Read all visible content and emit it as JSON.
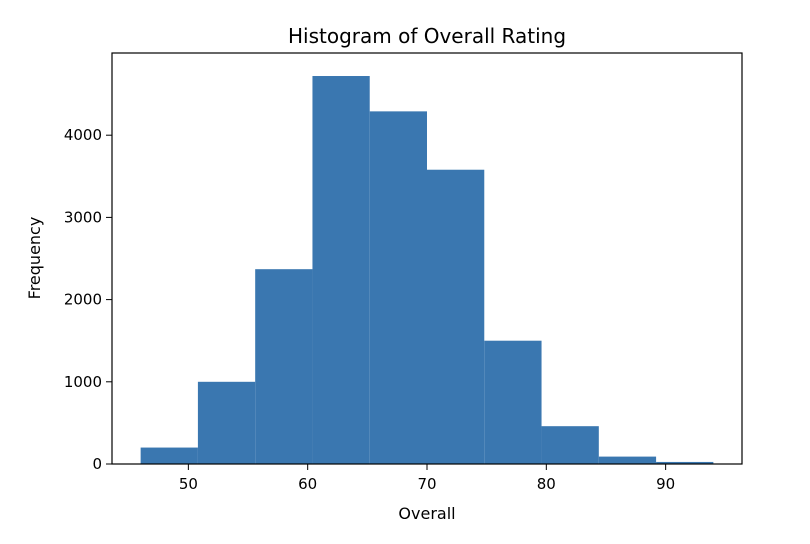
{
  "chart_data": {
    "type": "bar",
    "title": "Histogram of Overall Rating",
    "xlabel": "Overall",
    "ylabel": "Frequency",
    "bins": [
      {
        "x0": 46.0,
        "x1": 50.8,
        "value": 200
      },
      {
        "x0": 50.8,
        "x1": 55.6,
        "value": 1000
      },
      {
        "x0": 55.6,
        "x1": 60.4,
        "value": 2370
      },
      {
        "x0": 60.4,
        "x1": 65.2,
        "value": 4720
      },
      {
        "x0": 65.2,
        "x1": 70.0,
        "value": 4290
      },
      {
        "x0": 70.0,
        "x1": 74.8,
        "value": 3580
      },
      {
        "x0": 74.8,
        "x1": 79.6,
        "value": 1500
      },
      {
        "x0": 79.6,
        "x1": 84.4,
        "value": 460
      },
      {
        "x0": 84.4,
        "x1": 89.2,
        "value": 90
      },
      {
        "x0": 89.2,
        "x1": 94.0,
        "value": 25
      }
    ],
    "xlim": [
      43.6,
      96.4
    ],
    "ylim": [
      0,
      5000
    ],
    "xticks": [
      50,
      60,
      70,
      80,
      90
    ],
    "yticks": [
      0,
      1000,
      2000,
      3000,
      4000
    ],
    "bar_color": "#3a77b0",
    "grid": false
  }
}
